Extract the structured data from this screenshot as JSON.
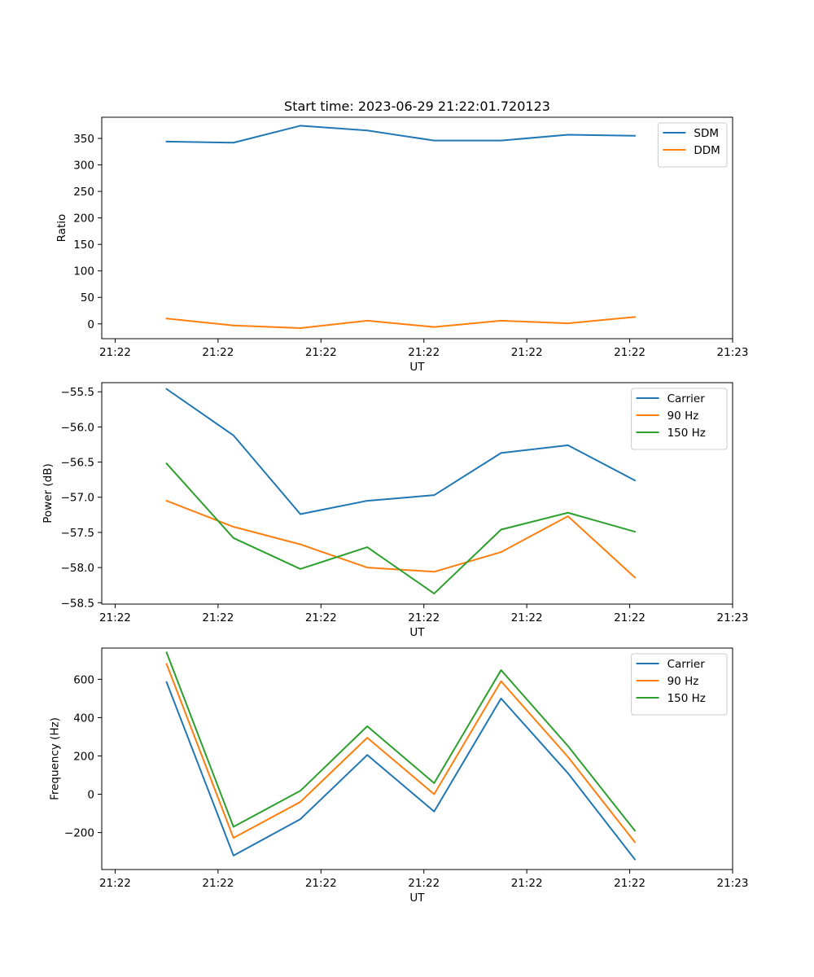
{
  "chart_data": [
    {
      "type": "line",
      "title": "Start time: 2023-06-29 21:22:01.720123",
      "xlabel": "UT",
      "ylabel": "Ratio",
      "x_ticks": [
        0,
        1,
        2,
        3,
        4,
        5,
        6
      ],
      "x_tick_labels": [
        "21:22",
        "21:22",
        "21:22",
        "21:22",
        "21:22",
        "21:22",
        "21:23"
      ],
      "xlim": [
        -0.13,
        6.0
      ],
      "y_ticks": [
        0,
        50,
        100,
        150,
        200,
        250,
        300,
        350
      ],
      "y_tick_labels": [
        "0",
        "50",
        "100",
        "150",
        "200",
        "250",
        "300",
        "350"
      ],
      "ylim": [
        -28,
        390
      ],
      "grid": false,
      "legend_position": "top-right",
      "series": [
        {
          "name": "SDM",
          "color": "#1f77b4",
          "x": [
            0.5,
            1.15,
            1.8,
            2.45,
            3.1,
            3.75,
            4.4,
            5.05
          ],
          "values": [
            344,
            342,
            374,
            365,
            346,
            346,
            357,
            355
          ]
        },
        {
          "name": "DDM",
          "color": "#ff7f0e",
          "x": [
            0.5,
            1.15,
            1.8,
            2.45,
            3.1,
            3.75,
            4.4,
            5.05
          ],
          "values": [
            10,
            -3,
            -8,
            6,
            -6,
            6,
            1,
            13
          ]
        }
      ]
    },
    {
      "type": "line",
      "title": "",
      "xlabel": "UT",
      "ylabel": "Power (dB)",
      "x_ticks": [
        0,
        1,
        2,
        3,
        4,
        5,
        6
      ],
      "x_tick_labels": [
        "21:22",
        "21:22",
        "21:22",
        "21:22",
        "21:22",
        "21:22",
        "21:23"
      ],
      "xlim": [
        -0.13,
        6.0
      ],
      "y_ticks": [
        -58.5,
        -58.0,
        -57.5,
        -57.0,
        -56.5,
        -56.0,
        -55.5
      ],
      "y_tick_labels": [
        "−58.5",
        "−58.0",
        "−57.5",
        "−57.0",
        "−56.5",
        "−56.0",
        "−55.5"
      ],
      "ylim": [
        -58.52,
        -55.37
      ],
      "grid": false,
      "legend_position": "top-right",
      "series": [
        {
          "name": "Carrier",
          "color": "#1f77b4",
          "x": [
            0.5,
            1.15,
            1.8,
            2.45,
            3.1,
            3.75,
            4.4,
            5.05
          ],
          "values": [
            -55.46,
            -56.12,
            -57.24,
            -57.05,
            -56.97,
            -56.37,
            -56.26,
            -56.76
          ]
        },
        {
          "name": "90 Hz",
          "color": "#ff7f0e",
          "x": [
            0.5,
            1.15,
            1.8,
            2.45,
            3.1,
            3.75,
            4.4,
            5.05
          ],
          "values": [
            -57.05,
            -57.42,
            -57.67,
            -58.0,
            -58.06,
            -57.78,
            -57.27,
            -58.14
          ]
        },
        {
          "name": "150 Hz",
          "color": "#2ca02c",
          "x": [
            0.5,
            1.15,
            1.8,
            2.45,
            3.1,
            3.75,
            4.4,
            5.05
          ],
          "values": [
            -56.52,
            -57.58,
            -58.02,
            -57.71,
            -58.37,
            -57.46,
            -57.22,
            -57.49
          ]
        }
      ]
    },
    {
      "type": "line",
      "title": "",
      "xlabel": "UT",
      "ylabel": "Frequency (Hz)",
      "x_ticks": [
        0,
        1,
        2,
        3,
        4,
        5,
        6
      ],
      "x_tick_labels": [
        "21:22",
        "21:22",
        "21:22",
        "21:22",
        "21:22",
        "21:22",
        "21:23"
      ],
      "xlim": [
        -0.13,
        6.0
      ],
      "y_ticks": [
        -200,
        0,
        200,
        400,
        600
      ],
      "y_tick_labels": [
        "−200",
        "0",
        "200",
        "400",
        "600"
      ],
      "ylim": [
        -393,
        763
      ],
      "grid": false,
      "legend_position": "top-right",
      "series": [
        {
          "name": "Carrier",
          "color": "#1f77b4",
          "x": [
            0.5,
            1.15,
            1.8,
            2.45,
            3.1,
            3.75,
            4.4,
            5.05
          ],
          "values": [
            585,
            -320,
            -130,
            205,
            -90,
            500,
            110,
            -340
          ]
        },
        {
          "name": "90 Hz",
          "color": "#ff7f0e",
          "x": [
            0.5,
            1.15,
            1.8,
            2.45,
            3.1,
            3.75,
            4.4,
            5.05
          ],
          "values": [
            680,
            -228,
            -40,
            295,
            0,
            590,
            195,
            -250
          ]
        },
        {
          "name": "150 Hz",
          "color": "#2ca02c",
          "x": [
            0.5,
            1.15,
            1.8,
            2.45,
            3.1,
            3.75,
            4.4,
            5.05
          ],
          "values": [
            740,
            -170,
            18,
            355,
            58,
            648,
            252,
            -190
          ]
        }
      ]
    }
  ]
}
